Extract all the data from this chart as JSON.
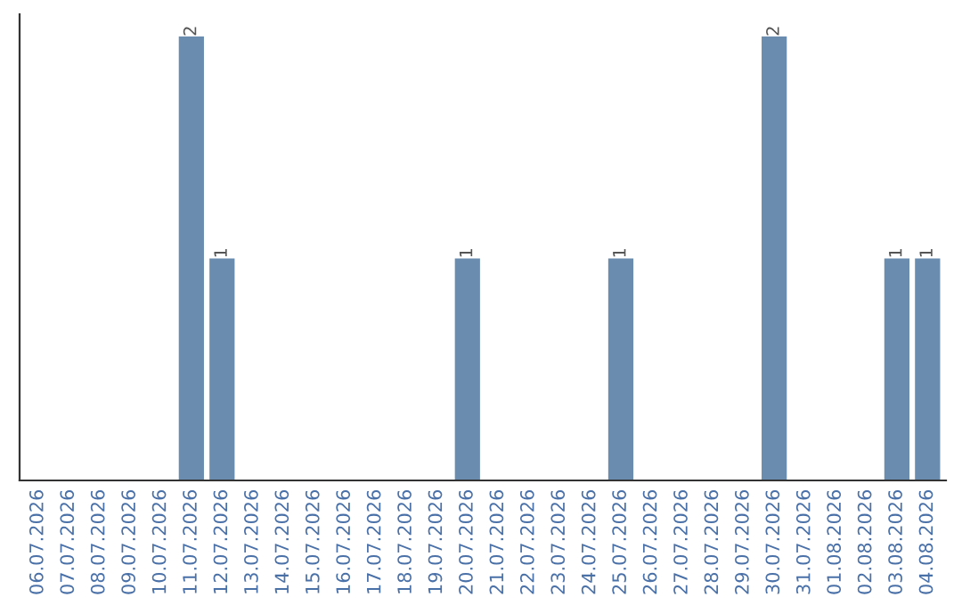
{
  "chart_data": {
    "type": "bar",
    "categories": [
      "06.07.2026",
      "07.07.2026",
      "08.07.2026",
      "09.07.2026",
      "10.07.2026",
      "11.07.2026",
      "12.07.2026",
      "13.07.2026",
      "14.07.2026",
      "15.07.2026",
      "16.07.2026",
      "17.07.2026",
      "18.07.2026",
      "19.07.2026",
      "20.07.2026",
      "21.07.2026",
      "22.07.2026",
      "23.07.2026",
      "24.07.2026",
      "25.07.2026",
      "26.07.2026",
      "27.07.2026",
      "28.07.2026",
      "29.07.2026",
      "30.07.2026",
      "31.07.2026",
      "01.08.2026",
      "02.08.2026",
      "03.08.2026",
      "04.08.2026"
    ],
    "values": [
      0,
      0,
      0,
      0,
      0,
      2,
      1,
      0,
      0,
      0,
      0,
      0,
      0,
      0,
      1,
      0,
      0,
      0,
      0,
      1,
      0,
      0,
      0,
      0,
      2,
      0,
      0,
      0,
      1,
      1
    ],
    "value_labels": [
      null,
      null,
      null,
      null,
      null,
      "2",
      "1",
      null,
      null,
      null,
      null,
      null,
      null,
      null,
      "1",
      null,
      null,
      null,
      null,
      "1",
      null,
      null,
      null,
      null,
      "2",
      null,
      null,
      null,
      "1",
      "1"
    ],
    "color": "#6a8caf",
    "tick_labels": "x",
    "grid": false,
    "legend": false
  }
}
